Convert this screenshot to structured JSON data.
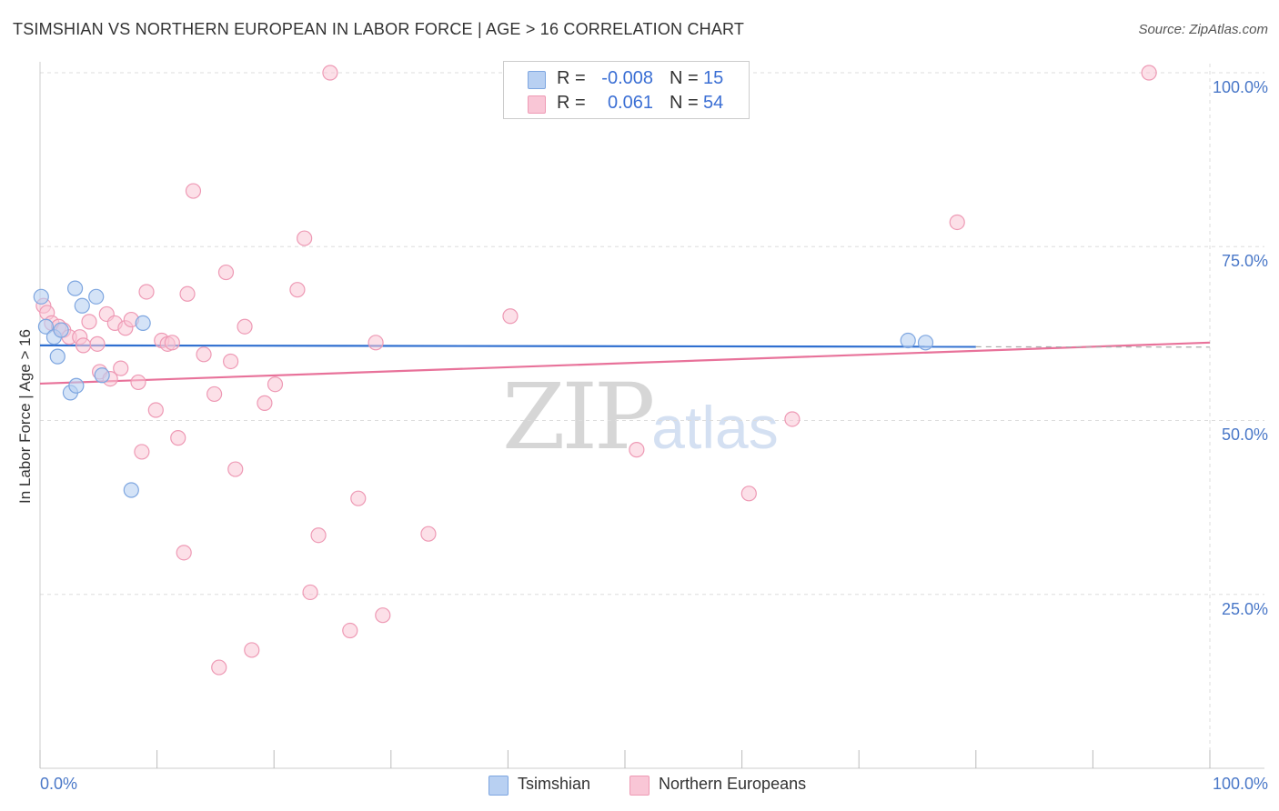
{
  "title": "TSIMSHIAN VS NORTHERN EUROPEAN IN LABOR FORCE | AGE > 16 CORRELATION CHART",
  "source": "Source: ZipAtlas.com",
  "watermark": {
    "zip": "ZIP",
    "atlas": "atlas"
  },
  "legend": {
    "rows": [
      {
        "r_label": "R =",
        "r_value": "-0.008",
        "n_label": "N =",
        "n_value": "15"
      },
      {
        "r_label": "R =",
        "r_value": "0.061",
        "n_label": "N =",
        "n_value": "54"
      }
    ]
  },
  "bottom_legend": {
    "tsimshian": "Tsimshian",
    "northern": "Northern Europeans"
  },
  "colors": {
    "tsimshian_fill": "#b8d0f2",
    "tsimshian_stroke": "#7ea6e0",
    "tsimshian_line": "#2f6fd0",
    "northern_fill": "#f9c6d6",
    "northern_stroke": "#ee9ab5",
    "northern_line": "#e8729a",
    "grid": "#dddddd",
    "axis_text": "#4a78c8"
  },
  "chart_data": {
    "type": "scatter",
    "title": "TSIMSHIAN VS NORTHERN EUROPEAN IN LABOR FORCE | AGE > 16 CORRELATION CHART",
    "xlabel": "",
    "ylabel": "In Labor Force | Age > 16",
    "xlim": [
      0,
      100
    ],
    "ylim": [
      0,
      100
    ],
    "x_tick_labels": [
      "0.0%",
      "100.0%"
    ],
    "y_ticks": [
      25,
      50,
      75,
      100
    ],
    "y_tick_labels": [
      "25.0%",
      "50.0%",
      "75.0%",
      "100.0%"
    ],
    "grid": true,
    "legend_position": "top-center",
    "series": [
      {
        "name": "Tsimshian",
        "r": -0.008,
        "n": 15,
        "trend": {
          "x_start": 0,
          "y_start": 60.8,
          "x_end": 80,
          "y_end": 60.6,
          "dashed_to_x": 100
        },
        "points": [
          [
            0.1,
            67.8
          ],
          [
            0.5,
            63.5
          ],
          [
            1.2,
            62.0
          ],
          [
            1.5,
            59.2
          ],
          [
            1.8,
            63.0
          ],
          [
            2.6,
            54.0
          ],
          [
            3.1,
            55.0
          ],
          [
            3.0,
            69.0
          ],
          [
            3.6,
            66.5
          ],
          [
            4.8,
            67.8
          ],
          [
            5.3,
            56.5
          ],
          [
            7.8,
            40.0
          ],
          [
            8.8,
            64.0
          ],
          [
            74.2,
            61.5
          ],
          [
            75.7,
            61.2
          ]
        ]
      },
      {
        "name": "Northern Europeans",
        "r": 0.061,
        "n": 54,
        "trend": {
          "x_start": 0,
          "y_start": 55.3,
          "x_end": 100,
          "y_end": 61.2
        },
        "points": [
          [
            0.3,
            66.5
          ],
          [
            0.6,
            65.5
          ],
          [
            1.0,
            64.0
          ],
          [
            1.6,
            63.5
          ],
          [
            2.0,
            63.0
          ],
          [
            2.5,
            62.0
          ],
          [
            3.4,
            62.0
          ],
          [
            3.7,
            60.8
          ],
          [
            4.2,
            64.2
          ],
          [
            4.9,
            61.0
          ],
          [
            5.1,
            57.0
          ],
          [
            5.7,
            65.3
          ],
          [
            6.0,
            56.0
          ],
          [
            6.4,
            64.0
          ],
          [
            6.9,
            57.5
          ],
          [
            7.3,
            63.3
          ],
          [
            7.8,
            64.5
          ],
          [
            8.4,
            55.5
          ],
          [
            8.7,
            45.5
          ],
          [
            9.1,
            68.5
          ],
          [
            9.9,
            51.5
          ],
          [
            10.4,
            61.5
          ],
          [
            10.9,
            61.0
          ],
          [
            11.3,
            61.2
          ],
          [
            11.8,
            47.5
          ],
          [
            12.3,
            31.0
          ],
          [
            12.6,
            68.2
          ],
          [
            13.1,
            83.0
          ],
          [
            14.0,
            59.5
          ],
          [
            14.9,
            53.8
          ],
          [
            15.3,
            14.5
          ],
          [
            15.9,
            71.3
          ],
          [
            16.3,
            58.5
          ],
          [
            16.7,
            43.0
          ],
          [
            17.5,
            63.5
          ],
          [
            18.1,
            17.0
          ],
          [
            19.2,
            52.5
          ],
          [
            20.1,
            55.2
          ],
          [
            22.0,
            68.8
          ],
          [
            22.6,
            76.2
          ],
          [
            23.1,
            25.3
          ],
          [
            23.8,
            33.5
          ],
          [
            24.8,
            100.0
          ],
          [
            26.5,
            19.8
          ],
          [
            27.2,
            38.8
          ],
          [
            28.7,
            61.2
          ],
          [
            29.3,
            22.0
          ],
          [
            33.2,
            33.7
          ],
          [
            40.2,
            65.0
          ],
          [
            51.0,
            45.8
          ],
          [
            60.6,
            39.5
          ],
          [
            64.3,
            50.2
          ],
          [
            78.4,
            78.5
          ],
          [
            94.8,
            100.0
          ]
        ]
      }
    ]
  }
}
